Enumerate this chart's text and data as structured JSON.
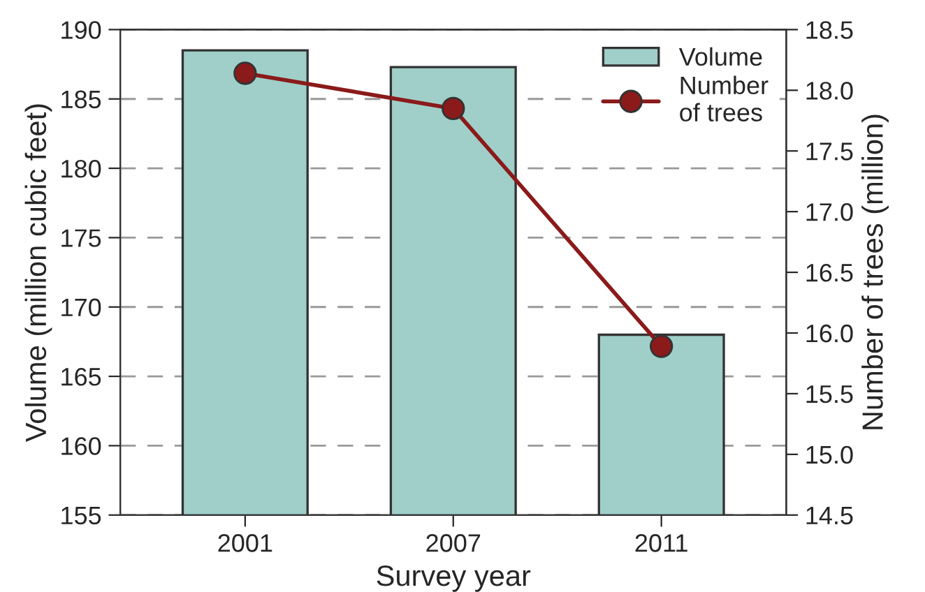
{
  "chart_data": {
    "type": "bar",
    "xlabel": "Survey year",
    "ylabel": "Volume (million cubic feet)",
    "y2label": "Number of trees (million)",
    "categories": [
      "2001",
      "2007",
      "2011"
    ],
    "series": [
      {
        "name": "Volume",
        "color": "#9fcfc8",
        "values": [
          188.5,
          187.3,
          168.0
        ]
      },
      {
        "name": "Number\nof trees",
        "type": "line",
        "axis": "y2",
        "color": "#8b1a1a",
        "marker": "circle",
        "line_style": "solid",
        "values": [
          18.14,
          17.85,
          15.89
        ]
      }
    ],
    "ylim": [
      155,
      190
    ],
    "yticks": [
      155,
      160,
      165,
      170,
      175,
      180,
      185,
      190
    ],
    "y2lim": [
      14.5,
      18.5
    ],
    "y2ticks": [
      {
        "value": 14.5,
        "label": "14.5"
      },
      {
        "value": 15.0,
        "label": "15.0"
      },
      {
        "value": 15.5,
        "label": "15.5"
      },
      {
        "value": 16.0,
        "label": "16.0"
      },
      {
        "value": 16.5,
        "label": "16.5"
      },
      {
        "value": 17.0,
        "label": "17.0"
      },
      {
        "value": 17.5,
        "label": "17.5"
      },
      {
        "value": 18.0,
        "label": "18.0"
      },
      {
        "value": 18.5,
        "label": "18.5"
      }
    ],
    "grid": "y",
    "legend": "top right"
  }
}
